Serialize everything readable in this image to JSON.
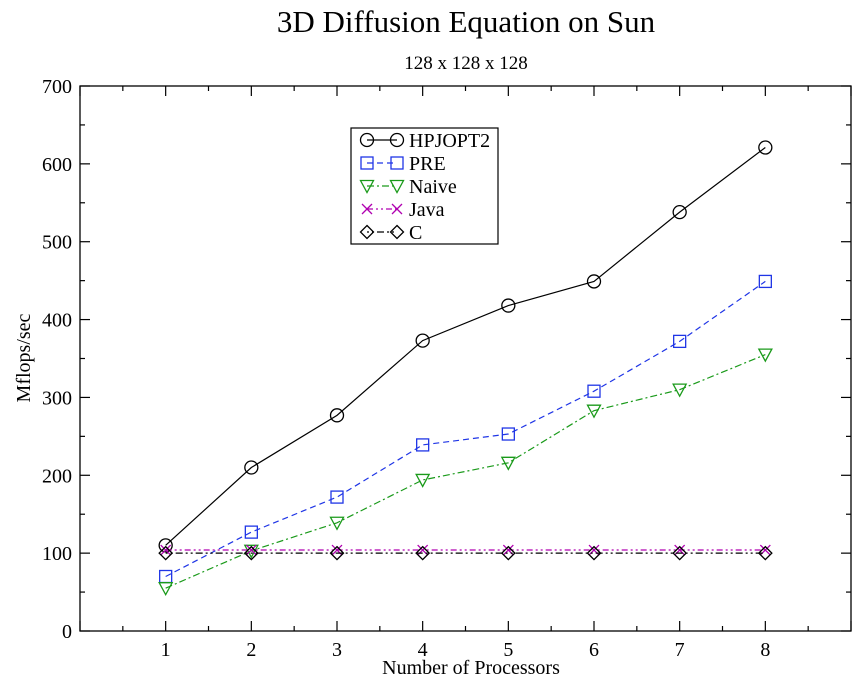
{
  "chart_data": {
    "type": "line",
    "title": "3D Diffusion Equation on Sun",
    "subtitle": "128 x 128 x 128",
    "xlabel": "Number of Processors",
    "ylabel": "Mflops/sec",
    "xlim": [
      0,
      9
    ],
    "ylim": [
      0,
      700
    ],
    "x": [
      1,
      2,
      3,
      4,
      5,
      6,
      7,
      8
    ],
    "xticks": [
      1,
      2,
      3,
      4,
      5,
      6,
      7,
      8
    ],
    "yticks": [
      0,
      100,
      200,
      300,
      400,
      500,
      600,
      700
    ],
    "grid": false,
    "legend_position": "top-center",
    "series": [
      {
        "name": "HPJOPT2",
        "values": [
          110,
          210,
          277,
          373,
          418,
          449,
          538,
          621
        ],
        "color": "#000000",
        "marker": "circle",
        "dash": "solid"
      },
      {
        "name": "PRE",
        "values": [
          70,
          127,
          172,
          239,
          253,
          308,
          372,
          449
        ],
        "color": "#1f35e6",
        "marker": "square",
        "dash": "dashed"
      },
      {
        "name": "Naive",
        "values": [
          55,
          103,
          139,
          194,
          216,
          283,
          310,
          355
        ],
        "color": "#1a9a1a",
        "marker": "triangle-down",
        "dash": "dash-dot"
      },
      {
        "name": "Java",
        "values": [
          104,
          104,
          104,
          104,
          104,
          104,
          104,
          104
        ],
        "color": "#b000b0",
        "marker": "x",
        "dash": "dash-dot-dot"
      },
      {
        "name": "C",
        "values": [
          100,
          100,
          100,
          100,
          100,
          100,
          100,
          100
        ],
        "color": "#000000",
        "marker": "diamond",
        "dash": "dot-dot-dash"
      }
    ]
  }
}
